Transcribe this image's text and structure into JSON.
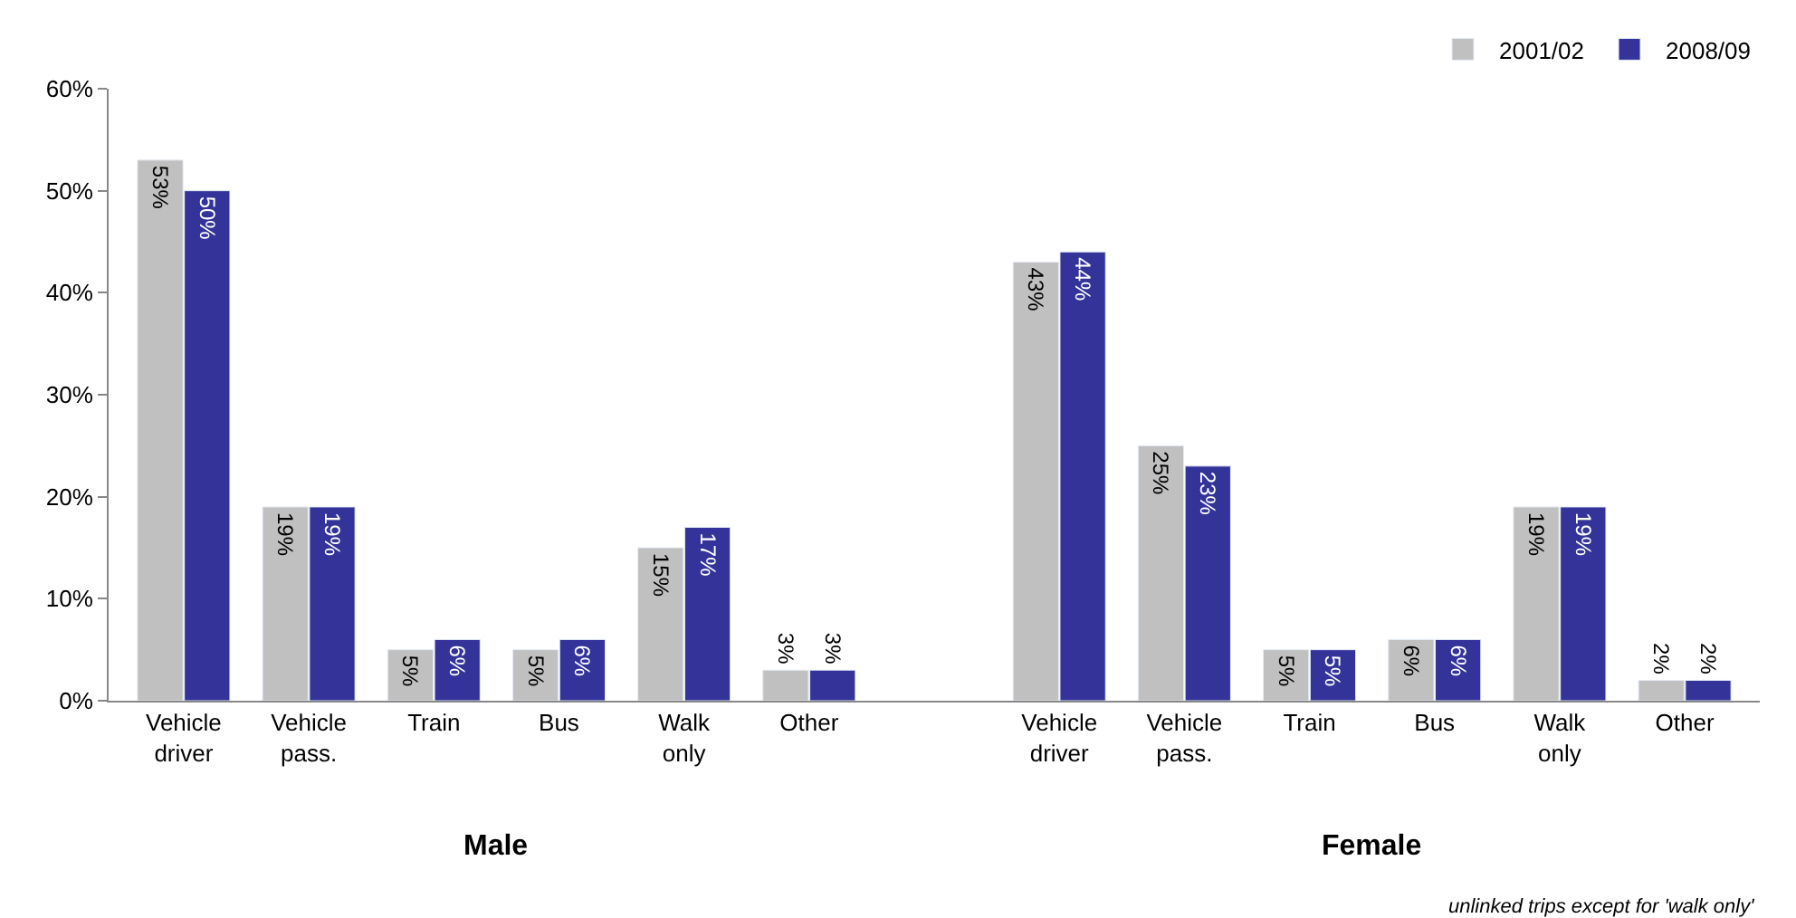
{
  "chart_data": {
    "type": "bar",
    "categories": [
      "Vehicle driver",
      "Vehicle pass.",
      "Train",
      "Bus",
      "Walk only",
      "Other",
      null,
      "Vehicle driver",
      "Vehicle pass.",
      "Train",
      "Bus",
      "Walk only",
      "Other"
    ],
    "series": [
      {
        "name": "2001/02",
        "color": "#c0c0c0",
        "values": [
          53,
          19,
          5,
          5,
          15,
          3,
          null,
          43,
          25,
          5,
          6,
          19,
          2
        ],
        "value_labels": [
          "53%",
          "19%",
          "5%",
          "5%",
          "15%",
          "3%",
          null,
          "43%",
          "25%",
          "5%",
          "6%",
          "19%",
          "2%"
        ]
      },
      {
        "name": "2008/09",
        "color": "#333399",
        "values": [
          50,
          19,
          6,
          6,
          17,
          3,
          null,
          44,
          23,
          5,
          6,
          19,
          2
        ],
        "value_labels": [
          "50%",
          "19%",
          "6%",
          "6%",
          "17%",
          "3%",
          null,
          "44%",
          "23%",
          "5%",
          "6%",
          "19%",
          "2%"
        ]
      }
    ],
    "ylim": [
      0,
      60
    ],
    "yticks": [
      {
        "value": 0,
        "label": "0%"
      },
      {
        "value": 10,
        "label": "10%"
      },
      {
        "value": 20,
        "label": "20%"
      },
      {
        "value": 30,
        "label": "30%"
      },
      {
        "value": 40,
        "label": "40%"
      },
      {
        "value": 50,
        "label": "50%"
      },
      {
        "value": 60,
        "label": "60%"
      }
    ],
    "legend": "top right",
    "annotations": [
      "Male",
      "Female",
      "unlinked trips except for 'walk only'"
    ]
  }
}
